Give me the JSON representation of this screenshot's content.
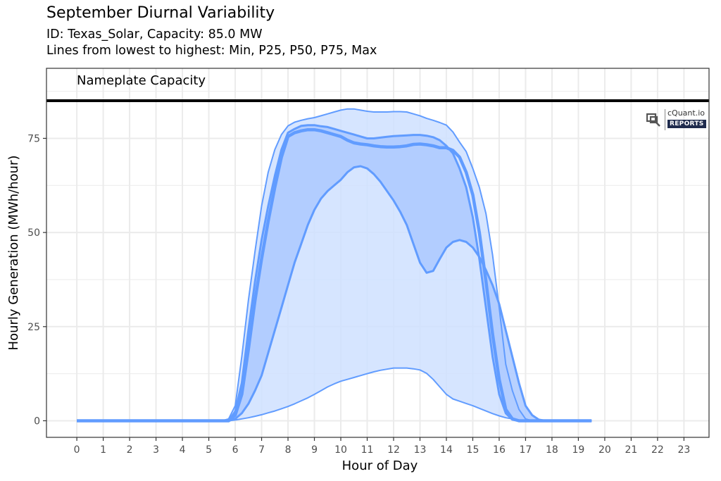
{
  "header": {
    "title": "September Diurnal Variability",
    "subtitle_line1": "ID: Texas_Solar, Capacity: 85.0 MW",
    "subtitle_line2": "Lines from lowest to highest: Min, P25, P50, P75, Max"
  },
  "logo": {
    "brand": "cQuant.io",
    "badge": "REPORTS"
  },
  "colors": {
    "line": "#619cff",
    "band_outer": "#cfe0ff",
    "band_inner": "#acc9ff",
    "nameplate": "#000000",
    "grid": "#ebebeb"
  },
  "chart_data": {
    "type": "area",
    "title": "September Diurnal Variability",
    "subtitle": "ID: Texas_Solar, Capacity: 85.0 MW | Lines from lowest to highest: Min, P25, P50, P75, Max",
    "xlabel": "Hour of Day",
    "ylabel": "Hourly Generation (MWh/hour)",
    "xlim": [
      -1.15,
      23.95
    ],
    "ylim": [
      -4.4,
      93.6
    ],
    "x_ticks": [
      "0",
      "1",
      "2",
      "3",
      "4",
      "5",
      "6",
      "7",
      "8",
      "9",
      "10",
      "11",
      "12",
      "13",
      "14",
      "15",
      "16",
      "17",
      "18",
      "19",
      "20",
      "21",
      "22",
      "23"
    ],
    "y_ticks": [
      "0",
      "25",
      "50",
      "75"
    ],
    "grid": true,
    "legend": "none",
    "annotations": [
      {
        "text": "Nameplate Capacity",
        "type": "hline",
        "y": 85.0
      }
    ],
    "x": [
      0,
      1,
      2,
      3,
      4,
      5,
      5.5,
      5.75,
      6,
      6.25,
      6.5,
      6.75,
      7,
      7.25,
      7.5,
      7.75,
      8,
      8.25,
      8.5,
      8.75,
      9,
      9.25,
      9.5,
      9.75,
      10,
      10.25,
      10.5,
      10.75,
      11,
      11.25,
      11.5,
      11.75,
      12,
      12.25,
      12.5,
      12.75,
      13,
      13.25,
      13.5,
      13.75,
      14,
      14.25,
      14.5,
      14.75,
      15,
      15.25,
      15.5,
      15.75,
      16,
      16.25,
      16.5,
      16.75,
      17,
      17.25,
      17.5,
      17.75,
      18,
      18.25,
      18.5,
      18.75,
      19,
      19.5,
      20,
      21,
      22,
      23
    ],
    "series": [
      {
        "name": "Min",
        "values": [
          0,
          0,
          0,
          0,
          0,
          0,
          0,
          0,
          0.2,
          0.5,
          0.8,
          1.2,
          1.6,
          2.1,
          2.6,
          3.2,
          3.8,
          4.5,
          5.3,
          6.1,
          7,
          8,
          9,
          9.8,
          10.5,
          11,
          11.5,
          12,
          12.5,
          13,
          13.4,
          13.7,
          14,
          14,
          14,
          13.8,
          13.5,
          12.6,
          11,
          9,
          7,
          5.8,
          5.2,
          4.6,
          4.0,
          3.3,
          2.6,
          1.9,
          1.3,
          0.8,
          0.5,
          0.2,
          0,
          0,
          0,
          0,
          0,
          0,
          0,
          0,
          0,
          0
        ]
      },
      {
        "name": "P25",
        "values": [
          0,
          0,
          0,
          0,
          0,
          0,
          0,
          0,
          0.5,
          2,
          4.5,
          8,
          12,
          18,
          24,
          30,
          36,
          42,
          47,
          52,
          56,
          59,
          61,
          62.5,
          64,
          66,
          67.3,
          67.6,
          67,
          65.5,
          63.5,
          61,
          58.5,
          55.5,
          52,
          47,
          42,
          39.3,
          39.8,
          43,
          46,
          47.5,
          48,
          47.5,
          46,
          43.5,
          40,
          36,
          31,
          24,
          17,
          10,
          4,
          1.5,
          0.3,
          0,
          0,
          0,
          0,
          0,
          0,
          0
        ]
      },
      {
        "name": "P50",
        "values": [
          0,
          0,
          0,
          0,
          0,
          0,
          0,
          0,
          1.5,
          7,
          19,
          32,
          43,
          53,
          62,
          70,
          75.5,
          76.5,
          77,
          77.3,
          77.3,
          77,
          76.5,
          76,
          75.5,
          74.5,
          73.8,
          73.5,
          73.3,
          73,
          72.8,
          72.7,
          72.7,
          72.8,
          73,
          73.4,
          73.5,
          73.3,
          73,
          72.5,
          72.5,
          71.8,
          70,
          66,
          60,
          50,
          37,
          23,
          11,
          3,
          0.5,
          0,
          0,
          0,
          0,
          0,
          0,
          0,
          0,
          0,
          0,
          0
        ]
      },
      {
        "name": "P75",
        "values": [
          0,
          0,
          0,
          0,
          0,
          0,
          0,
          0,
          2.5,
          10,
          24,
          37,
          48,
          57,
          65,
          72,
          76.5,
          77.5,
          78.3,
          78.5,
          78.5,
          78.2,
          78,
          77.5,
          77,
          76.5,
          76,
          75.5,
          75,
          75,
          75.2,
          75.4,
          75.6,
          75.7,
          75.8,
          75.9,
          75.9,
          75.7,
          75.3,
          74.5,
          73,
          71,
          67,
          62,
          54,
          43,
          30,
          17,
          7,
          2,
          0.3,
          0,
          0,
          0,
          0,
          0,
          0,
          0,
          0,
          0,
          0,
          0
        ]
      },
      {
        "name": "Max",
        "values": [
          0,
          0,
          0,
          0,
          0,
          0,
          0,
          0.5,
          4,
          17,
          32,
          45,
          57,
          66,
          72,
          76,
          78.3,
          79.3,
          79.8,
          80.2,
          80.5,
          81,
          81.5,
          82,
          82.5,
          82.8,
          82.8,
          82.5,
          82.2,
          82,
          82,
          82,
          82.1,
          82.1,
          82,
          81.5,
          81,
          80.3,
          79.8,
          79.2,
          78.5,
          76.7,
          74,
          71.5,
          67,
          62,
          55,
          44,
          30,
          15,
          8,
          3,
          0.5,
          0,
          0,
          0,
          0,
          0,
          0,
          0,
          0,
          0
        ]
      }
    ]
  }
}
